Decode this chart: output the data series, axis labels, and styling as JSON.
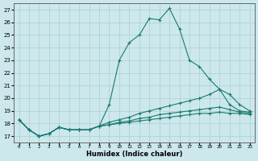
{
  "xlabel": "Humidex (Indice chaleur)",
  "xlim": [
    -0.5,
    23.5
  ],
  "ylim": [
    16.5,
    27.5
  ],
  "yticks": [
    17,
    18,
    19,
    20,
    21,
    22,
    23,
    24,
    25,
    26,
    27
  ],
  "xticks": [
    0,
    1,
    2,
    3,
    4,
    5,
    6,
    7,
    8,
    9,
    10,
    11,
    12,
    13,
    14,
    15,
    16,
    17,
    18,
    19,
    20,
    21,
    22,
    23
  ],
  "background_color": "#cce8ec",
  "line_color": "#1a7a6e",
  "grid_color": "#aacdd4",
  "lines": [
    {
      "x": [
        0,
        1,
        2,
        3,
        4,
        5,
        6,
        7,
        8,
        9,
        10,
        11,
        12,
        13,
        14,
        15,
        16,
        17,
        18,
        19,
        20,
        21,
        22,
        23
      ],
      "y": [
        18.3,
        17.5,
        17.0,
        17.2,
        17.7,
        17.5,
        17.5,
        17.5,
        17.8,
        19.5,
        23.0,
        24.4,
        25.0,
        26.3,
        26.2,
        27.1,
        25.5,
        23.0,
        22.5,
        21.5,
        20.7,
        19.5,
        19.0,
        18.9
      ]
    },
    {
      "x": [
        0,
        1,
        2,
        3,
        4,
        5,
        6,
        7,
        8,
        9,
        10,
        11,
        12,
        13,
        14,
        15,
        16,
        17,
        18,
        19,
        20,
        21,
        22,
        23
      ],
      "y": [
        18.3,
        17.5,
        17.0,
        17.2,
        17.7,
        17.5,
        17.5,
        17.5,
        17.8,
        18.1,
        18.3,
        18.5,
        18.8,
        19.0,
        19.2,
        19.4,
        19.6,
        19.8,
        20.0,
        20.3,
        20.7,
        20.3,
        19.5,
        19.0
      ]
    },
    {
      "x": [
        0,
        1,
        2,
        3,
        4,
        5,
        6,
        7,
        8,
        9,
        10,
        11,
        12,
        13,
        14,
        15,
        16,
        17,
        18,
        19,
        20,
        21,
        22,
        23
      ],
      "y": [
        18.3,
        17.5,
        17.0,
        17.2,
        17.7,
        17.5,
        17.5,
        17.5,
        17.8,
        17.9,
        18.1,
        18.2,
        18.4,
        18.5,
        18.7,
        18.8,
        18.9,
        19.0,
        19.1,
        19.2,
        19.3,
        19.1,
        18.9,
        18.8
      ]
    },
    {
      "x": [
        0,
        1,
        2,
        3,
        4,
        5,
        6,
        7,
        8,
        9,
        10,
        11,
        12,
        13,
        14,
        15,
        16,
        17,
        18,
        19,
        20,
        21,
        22,
        23
      ],
      "y": [
        18.3,
        17.5,
        17.0,
        17.2,
        17.7,
        17.5,
        17.5,
        17.5,
        17.8,
        17.9,
        18.0,
        18.1,
        18.2,
        18.3,
        18.4,
        18.5,
        18.6,
        18.7,
        18.8,
        18.8,
        18.9,
        18.8,
        18.8,
        18.7
      ]
    }
  ]
}
